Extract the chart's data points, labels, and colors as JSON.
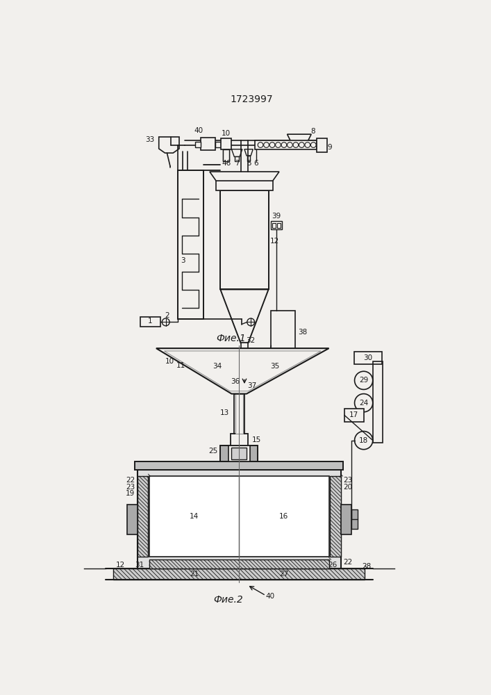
{
  "title": "1723997",
  "fig1_label": "Фие.1",
  "fig2_label": "Фие.2",
  "bg_color": "#f2f0ed",
  "line_color": "#1a1a1a",
  "line_width": 1.3
}
